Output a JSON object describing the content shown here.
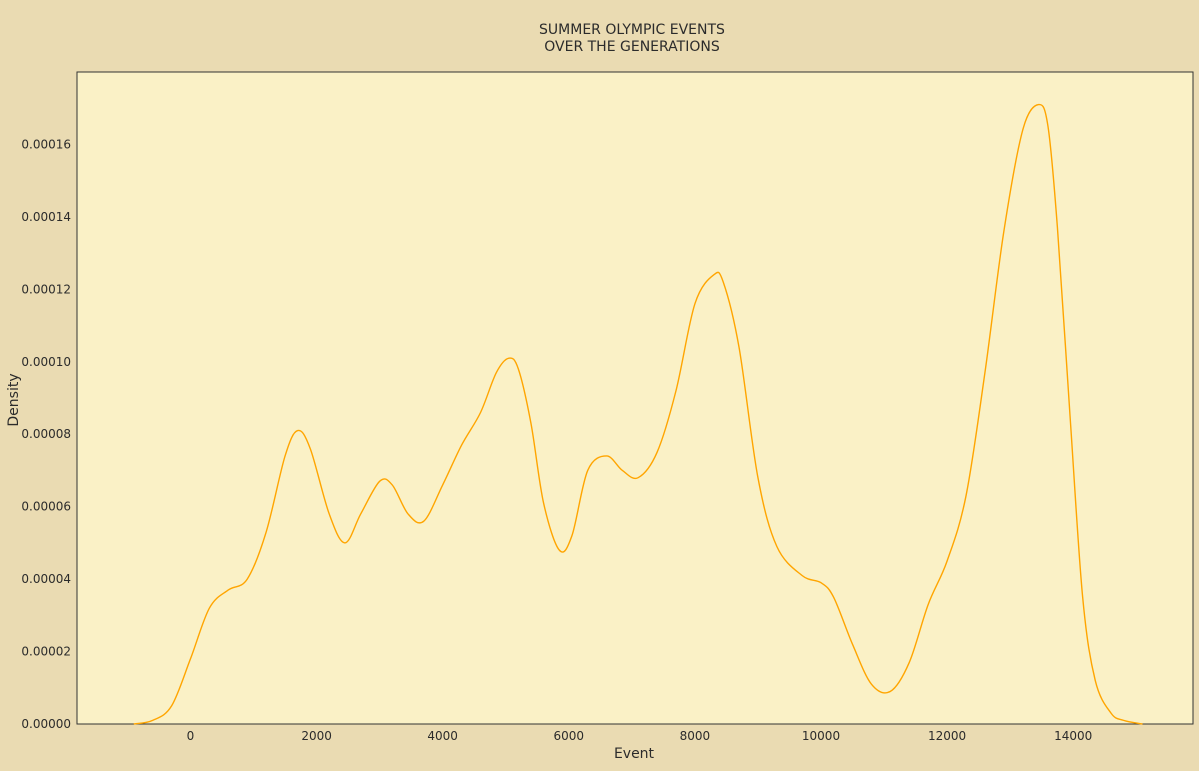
{
  "chart_data": {
    "type": "line",
    "title_lines": [
      "SUMMER OLYMPIC EVENTS",
      "OVER THE GENERATIONS"
    ],
    "xlabel": "Event",
    "ylabel": "Density",
    "xlim": [
      -1800,
      15900
    ],
    "ylim": [
      0,
      0.00018
    ],
    "x_ticks": [
      0,
      2000,
      4000,
      6000,
      8000,
      10000,
      12000,
      14000
    ],
    "y_ticks": [
      0,
      2e-05,
      4e-05,
      6e-05,
      8e-05,
      0.0001,
      0.00012,
      0.00014,
      0.00016
    ],
    "x_tick_labels": [
      "0",
      "2000",
      "4000",
      "6000",
      "8000",
      "10000",
      "12000",
      "14000"
    ],
    "y_tick_labels": [
      "0.00000",
      "0.00002",
      "0.00004",
      "0.00006",
      "0.00008",
      "0.00010",
      "0.00012",
      "0.00014",
      "0.00016"
    ],
    "grid": false,
    "series": [
      {
        "color": "#FFA500",
        "x": [
          -900,
          -600,
          -300,
          0,
          300,
          600,
          900,
          1200,
          1500,
          1700,
          1900,
          2200,
          2450,
          2700,
          3000,
          3200,
          3450,
          3700,
          4000,
          4300,
          4600,
          4850,
          5050,
          5200,
          5400,
          5600,
          5850,
          6050,
          6300,
          6600,
          6850,
          7100,
          7400,
          7700,
          8000,
          8300,
          8450,
          8700,
          9000,
          9300,
          9700,
          10000,
          10200,
          10500,
          10800,
          11100,
          11400,
          11700,
          12000,
          12300,
          12600,
          12900,
          13200,
          13450,
          13600,
          13750,
          13950,
          14150,
          14350,
          14600,
          14800,
          15100
        ],
        "y": [
          0.0,
          1e-06,
          5e-06,
          1.8e-05,
          3.2e-05,
          3.7e-05,
          4e-05,
          5.3e-05,
          7.4e-05,
          8.1e-05,
          7.6e-05,
          5.8e-05,
          5e-05,
          5.8e-05,
          6.7e-05,
          6.6e-05,
          5.8e-05,
          5.6e-05,
          6.6e-05,
          7.7e-05,
          8.6e-05,
          9.7e-05,
          0.000101,
          9.8e-05,
          8.3e-05,
          6.1e-05,
          4.8e-05,
          5.2e-05,
          7e-05,
          7.4e-05,
          7e-05,
          6.8e-05,
          7.5e-05,
          9.2e-05,
          0.000116,
          0.000124,
          0.000122,
          0.000104,
          6.8e-05,
          4.9e-05,
          4.1e-05,
          3.9e-05,
          3.5e-05,
          2.2e-05,
          1.1e-05,
          9e-06,
          1.7e-05,
          3.3e-05,
          4.5e-05,
          6.3e-05,
          9.7e-05,
          0.000136,
          0.000164,
          0.000171,
          0.000165,
          0.000137,
          8.5e-05,
          3.5e-05,
          1.2e-05,
          3e-06,
          1e-06,
          0.0
        ]
      }
    ]
  },
  "colors": {
    "figure_background": "#EADBB2",
    "plot_background": "#FAF1C6",
    "axes_frame": "#333333",
    "line": "#FFA500"
  }
}
